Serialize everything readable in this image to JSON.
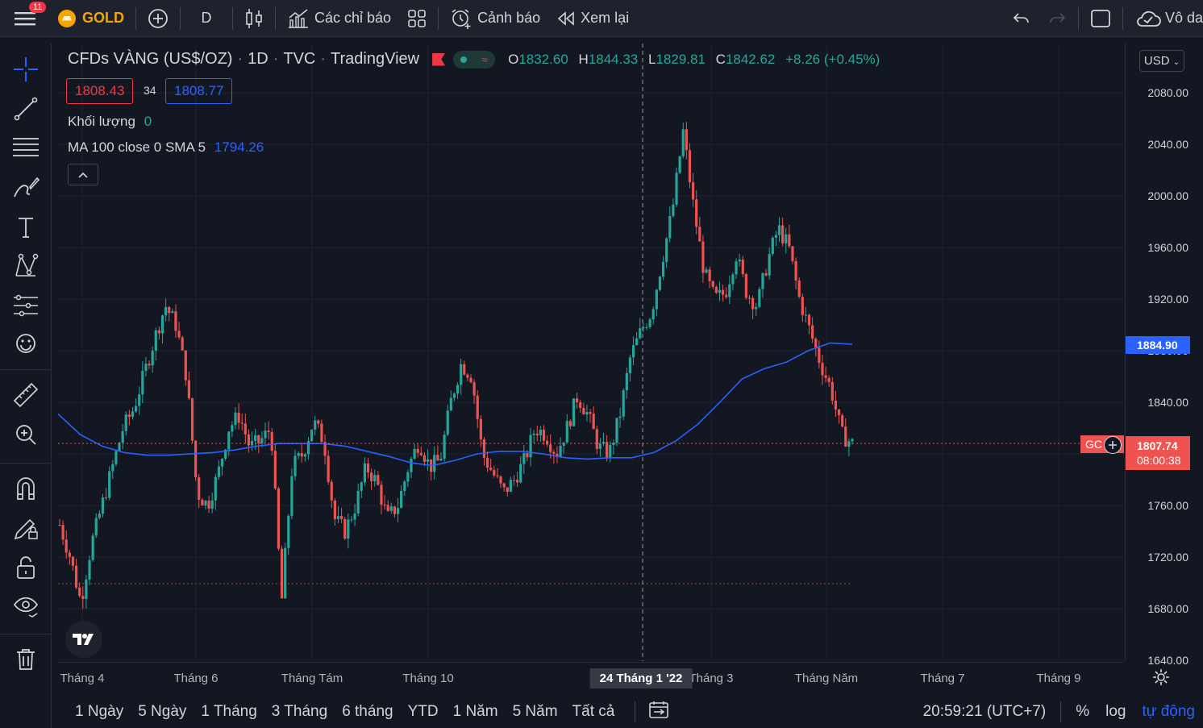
{
  "topbar": {
    "notification_count": "11",
    "symbol": "GOLD",
    "interval": "D",
    "indicators_label": "Các chỉ báo",
    "alerts_label": "Cảnh báo",
    "replay_label": "Xem lại",
    "right_label": "Vô da"
  },
  "legend": {
    "title": "CFDs VÀNG (US$/OZ)",
    "interval": "1D",
    "exchange": "TVC",
    "source": "TradingView",
    "o_key": "O",
    "o_val": "1832.60",
    "h_key": "H",
    "h_val": "1844.33",
    "l_key": "L",
    "l_val": "1829.81",
    "c_key": "C",
    "c_val": "1842.62",
    "change": "+8.26 (+0.45%)",
    "bid": "1808.43",
    "spread": "34",
    "ask": "1808.77",
    "volume_label": "Khối lượng",
    "volume_value": "0",
    "ma_label": "MA 100 close 0 SMA 5",
    "ma_value": "1794.26"
  },
  "price_axis": {
    "currency": "USD",
    "ticks": [
      "2080.00",
      "2040.00",
      "2000.00",
      "1960.00",
      "1920.00",
      "1880.00",
      "1840.00",
      "1800.00",
      "1760.00",
      "1720.00",
      "1680.00",
      "1640.00"
    ],
    "ma_label": "1884.90",
    "last_price": "1807.74",
    "countdown": "08:00:38",
    "symbol_tag": "GC"
  },
  "time_axis": {
    "ticks": [
      "Tháng 4",
      "Tháng 6",
      "Tháng Tám",
      "Tháng 10",
      "Tháng 3",
      "Tháng Năm",
      "Tháng 7",
      "Tháng 9"
    ],
    "crosshair_label": "24 Tháng 1 '22"
  },
  "bottombar": {
    "ranges": [
      "1 Ngày",
      "5 Ngày",
      "1 Tháng",
      "3 Tháng",
      "6 tháng",
      "YTD",
      "1 Năm",
      "5 Năm",
      "Tất cả"
    ],
    "clock": "20:59:21 (UTC+7)",
    "percent": "%",
    "log": "log",
    "auto": "tự động"
  },
  "colors": {
    "up": "#26a69a",
    "down": "#ef5350",
    "ma": "#2962ff",
    "background": "#131722"
  },
  "chart_data": {
    "type": "candlestick",
    "ylim": [
      1640,
      2090
    ],
    "ma_series": [
      1831,
      1815,
      1806,
      1801,
      1799,
      1799,
      1800,
      1801,
      1803,
      1806,
      1808,
      1808,
      1808,
      1806,
      1802,
      1798,
      1793,
      1791,
      1795,
      1800,
      1802,
      1802,
      1800,
      1797,
      1796,
      1797,
      1797,
      1801,
      1810,
      1823,
      1840,
      1858,
      1866,
      1871,
      1880,
      1886,
      1885
    ],
    "price_path": [
      1745,
      1720,
      1685,
      1730,
      1760,
      1790,
      1820,
      1835,
      1862,
      1890,
      1915,
      1900,
      1860,
      1770,
      1760,
      1785,
      1820,
      1830,
      1805,
      1810,
      1820,
      1685,
      1790,
      1800,
      1825,
      1810,
      1750,
      1740,
      1760,
      1790,
      1778,
      1750,
      1760,
      1790,
      1810,
      1790,
      1795,
      1840,
      1870,
      1860,
      1800,
      1785,
      1770,
      1780,
      1795,
      1820,
      1815,
      1800,
      1820,
      1845,
      1830,
      1805,
      1800,
      1830,
      1875,
      1895,
      1910,
      1950,
      1990,
      2050,
      1990,
      1940,
      1920,
      1925,
      1955,
      1925,
      1915,
      1950,
      1975,
      1960,
      1920,
      1895,
      1870,
      1850,
      1815,
      1808
    ]
  }
}
